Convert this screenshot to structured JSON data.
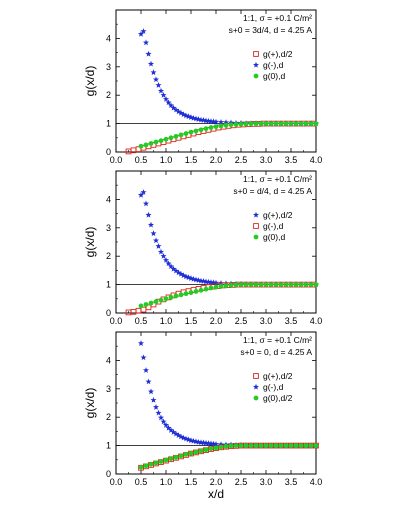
{
  "colors": {
    "plus": "#e0241b",
    "minus": "#1f2fd6",
    "zero": "#22cc22",
    "axis": "#000000",
    "refline": "#000000"
  },
  "xlabel": "x/d",
  "chart_data": [
    {
      "type": "scatter",
      "ylabel": "g(x/d)",
      "xlim": [
        0.0,
        4.0
      ],
      "ylim": [
        0,
        5
      ],
      "xticks": [
        "0.0",
        "0.5",
        "1.0",
        "1.5",
        "2.0",
        "2.5",
        "3.0",
        "3.5",
        "4.0"
      ],
      "yticks": [
        "0",
        "1",
        "2",
        "3",
        "4"
      ],
      "annotation": [
        "1:1, σ = +0.1 C/m²",
        "s+0 = 3d/4, d = 4.25 A"
      ],
      "legend_position": "right",
      "series": [
        {
          "name": "g(+),d/2",
          "marker": "open-square",
          "color_key": "plus",
          "x": [
            0.25,
            0.35,
            0.45,
            0.55,
            0.65,
            0.75,
            0.85,
            0.95,
            1.05,
            1.15,
            1.25,
            1.35,
            1.45,
            1.55,
            1.65,
            1.75,
            1.85,
            1.95,
            2.05,
            2.15,
            2.25,
            2.35,
            2.45,
            2.55,
            2.65,
            2.75,
            2.85,
            2.95,
            3.05,
            3.15,
            3.25,
            3.35,
            3.45,
            3.55,
            3.65,
            3.75,
            3.85,
            3.95
          ],
          "y": [
            0.02,
            0.06,
            0.1,
            0.15,
            0.2,
            0.25,
            0.3,
            0.35,
            0.4,
            0.45,
            0.5,
            0.55,
            0.6,
            0.65,
            0.7,
            0.74,
            0.78,
            0.82,
            0.86,
            0.89,
            0.92,
            0.94,
            0.96,
            0.97,
            0.98,
            0.99,
            0.99,
            1.0,
            1.0,
            1.0,
            1.0,
            1.0,
            1.0,
            1.0,
            1.0,
            1.0,
            1.0,
            1.0
          ]
        },
        {
          "name": "g(-),d",
          "marker": "star",
          "color_key": "minus",
          "x": [
            0.5,
            0.55,
            0.6,
            0.65,
            0.7,
            0.75,
            0.8,
            0.85,
            0.9,
            0.95,
            1.0,
            1.05,
            1.1,
            1.15,
            1.2,
            1.25,
            1.3,
            1.35,
            1.4,
            1.45,
            1.5,
            1.55,
            1.6,
            1.65,
            1.7,
            1.75,
            1.8,
            1.85,
            1.9,
            1.95,
            2.0,
            2.1,
            2.2,
            2.3,
            2.4,
            2.5,
            2.6,
            2.7,
            2.8,
            2.9,
            3.0,
            3.1,
            3.2,
            3.3,
            3.4,
            3.5,
            3.6,
            3.7,
            3.8,
            3.9,
            4.0
          ],
          "y": [
            4.15,
            4.25,
            3.85,
            3.45,
            3.1,
            2.8,
            2.55,
            2.35,
            2.15,
            2.0,
            1.86,
            1.74,
            1.64,
            1.55,
            1.48,
            1.42,
            1.37,
            1.32,
            1.28,
            1.25,
            1.22,
            1.19,
            1.17,
            1.15,
            1.13,
            1.12,
            1.1,
            1.09,
            1.08,
            1.07,
            1.06,
            1.05,
            1.04,
            1.03,
            1.02,
            1.02,
            1.01,
            1.01,
            1.01,
            1.0,
            1.0,
            1.0,
            1.0,
            1.0,
            1.0,
            1.0,
            1.0,
            1.0,
            1.0,
            1.0,
            1.0
          ]
        },
        {
          "name": "g(0),d",
          "marker": "filled-circle",
          "color_key": "zero",
          "x": [
            0.5,
            0.6,
            0.7,
            0.8,
            0.9,
            1.0,
            1.1,
            1.2,
            1.3,
            1.4,
            1.5,
            1.6,
            1.7,
            1.8,
            1.9,
            2.0,
            2.1,
            2.2,
            2.3,
            2.4,
            2.5,
            2.6,
            2.7,
            2.8,
            2.9,
            3.0,
            3.1,
            3.2,
            3.3,
            3.4,
            3.5,
            3.6,
            3.7,
            3.8,
            3.9,
            4.0
          ],
          "y": [
            0.2,
            0.25,
            0.3,
            0.35,
            0.4,
            0.45,
            0.5,
            0.55,
            0.6,
            0.65,
            0.7,
            0.74,
            0.78,
            0.82,
            0.86,
            0.89,
            0.92,
            0.94,
            0.96,
            0.97,
            0.98,
            0.99,
            1.0,
            1.0,
            1.0,
            1.0,
            1.0,
            1.0,
            1.0,
            1.0,
            1.0,
            1.0,
            1.0,
            1.0,
            1.0,
            1.0
          ]
        }
      ]
    },
    {
      "type": "scatter",
      "ylabel": "g(x/d)",
      "xlim": [
        0.0,
        4.0
      ],
      "ylim": [
        0,
        5
      ],
      "xticks": [
        "0.0",
        "0.5",
        "1.0",
        "1.5",
        "2.0",
        "2.5",
        "3.0",
        "3.5",
        "4.0"
      ],
      "yticks": [
        "0",
        "1",
        "2",
        "3",
        "4"
      ],
      "annotation": [
        "1:1, σ = +0.1 C/m²",
        "s+0 = d/4, d = 4.25 A"
      ],
      "legend_position": "right",
      "series": [
        {
          "name": "g(+),d/2",
          "marker": "star",
          "color_key": "minus",
          "x": [
            0.5,
            0.55,
            0.6,
            0.65,
            0.7,
            0.75,
            0.8,
            0.85,
            0.9,
            0.95,
            1.0,
            1.05,
            1.1,
            1.15,
            1.2,
            1.25,
            1.3,
            1.35,
            1.4,
            1.45,
            1.5,
            1.55,
            1.6,
            1.65,
            1.7,
            1.75,
            1.8,
            1.85,
            1.9,
            1.95,
            2.0,
            2.1,
            2.2,
            2.3,
            2.4,
            2.5,
            2.6,
            2.7,
            2.8,
            2.9,
            3.0,
            3.1,
            3.2,
            3.3,
            3.4,
            3.5,
            3.6,
            3.7,
            3.8,
            3.9,
            4.0
          ],
          "y": [
            4.15,
            4.25,
            3.85,
            3.45,
            3.1,
            2.8,
            2.55,
            2.35,
            2.15,
            2.0,
            1.86,
            1.74,
            1.64,
            1.55,
            1.48,
            1.42,
            1.37,
            1.32,
            1.28,
            1.25,
            1.22,
            1.19,
            1.17,
            1.15,
            1.13,
            1.12,
            1.1,
            1.09,
            1.08,
            1.07,
            1.06,
            1.05,
            1.04,
            1.03,
            1.02,
            1.02,
            1.01,
            1.01,
            1.01,
            1.0,
            1.0,
            1.0,
            1.0,
            1.0,
            1.0,
            1.0,
            1.0,
            1.0,
            1.0,
            1.0,
            1.0
          ]
        },
        {
          "name": "g(-),d",
          "marker": "open-square",
          "color_key": "plus",
          "x": [
            0.25,
            0.35,
            0.45,
            0.55,
            0.65,
            0.75,
            0.85,
            0.95,
            1.05,
            1.15,
            1.25,
            1.35,
            1.45,
            1.55,
            1.65,
            1.75,
            1.85,
            1.95,
            2.05,
            2.15,
            2.25,
            2.35,
            2.45,
            2.55,
            2.65,
            2.75,
            2.85,
            2.95,
            3.05,
            3.15,
            3.25,
            3.35,
            3.45,
            3.55,
            3.65,
            3.75,
            3.85,
            3.95
          ],
          "y": [
            0.02,
            0.04,
            0.08,
            0.12,
            0.2,
            0.3,
            0.4,
            0.48,
            0.55,
            0.62,
            0.68,
            0.73,
            0.77,
            0.81,
            0.85,
            0.88,
            0.91,
            0.93,
            0.95,
            0.97,
            0.98,
            0.99,
            1.0,
            1.0,
            1.0,
            1.0,
            1.0,
            1.0,
            1.0,
            1.0,
            1.0,
            1.0,
            1.0,
            1.0,
            1.0,
            1.0,
            1.0,
            1.0
          ]
        },
        {
          "name": "g(0),d",
          "marker": "filled-circle",
          "color_key": "zero",
          "x": [
            0.5,
            0.6,
            0.7,
            0.8,
            0.9,
            1.0,
            1.1,
            1.2,
            1.3,
            1.4,
            1.5,
            1.6,
            1.7,
            1.8,
            1.9,
            2.0,
            2.1,
            2.2,
            2.3,
            2.4,
            2.5,
            2.6,
            2.7,
            2.8,
            2.9,
            3.0,
            3.1,
            3.2,
            3.3,
            3.4,
            3.5,
            3.6,
            3.7,
            3.8,
            3.9,
            4.0
          ],
          "y": [
            0.25,
            0.3,
            0.35,
            0.4,
            0.45,
            0.5,
            0.55,
            0.6,
            0.64,
            0.68,
            0.72,
            0.76,
            0.8,
            0.84,
            0.88,
            0.91,
            0.94,
            0.96,
            0.98,
            0.99,
            1.0,
            1.0,
            1.0,
            1.0,
            1.0,
            1.0,
            1.0,
            1.0,
            1.0,
            1.0,
            1.0,
            1.0,
            1.0,
            1.0,
            1.0,
            1.0
          ]
        }
      ]
    },
    {
      "type": "scatter",
      "ylabel": "g(x/d)",
      "xlim": [
        0.0,
        4.0
      ],
      "ylim": [
        0,
        5
      ],
      "xticks": [
        "0.0",
        "0.5",
        "1.0",
        "1.5",
        "2.0",
        "2.5",
        "3.0",
        "3.5",
        "4.0"
      ],
      "yticks": [
        "0",
        "1",
        "2",
        "3",
        "4"
      ],
      "annotation": [
        "1:1, σ = +0.1 C/m²",
        "s+0 = 0, d = 4.25 A"
      ],
      "legend_position": "right",
      "series": [
        {
          "name": "g(+),d/2",
          "marker": "open-square",
          "color_key": "plus",
          "x": [
            0.5,
            0.6,
            0.7,
            0.8,
            0.9,
            1.0,
            1.1,
            1.2,
            1.3,
            1.4,
            1.5,
            1.6,
            1.7,
            1.8,
            1.9,
            2.0,
            2.1,
            2.2,
            2.3,
            2.4,
            2.5,
            2.6,
            2.7,
            2.8,
            2.9,
            3.0,
            3.1,
            3.2,
            3.3,
            3.4,
            3.5,
            3.6,
            3.7,
            3.8,
            3.9,
            4.0
          ],
          "y": [
            0.22,
            0.27,
            0.32,
            0.37,
            0.42,
            0.47,
            0.52,
            0.57,
            0.62,
            0.67,
            0.72,
            0.76,
            0.8,
            0.84,
            0.88,
            0.91,
            0.94,
            0.96,
            0.98,
            0.99,
            1.0,
            1.0,
            1.0,
            1.0,
            1.0,
            1.0,
            1.0,
            1.0,
            1.0,
            1.0,
            1.0,
            1.0,
            1.0,
            1.0,
            1.0,
            1.0
          ]
        },
        {
          "name": "g(-),d",
          "marker": "star",
          "color_key": "minus",
          "x": [
            0.5,
            0.55,
            0.6,
            0.65,
            0.7,
            0.75,
            0.8,
            0.85,
            0.9,
            0.95,
            1.0,
            1.05,
            1.1,
            1.15,
            1.2,
            1.25,
            1.3,
            1.35,
            1.4,
            1.45,
            1.5,
            1.55,
            1.6,
            1.65,
            1.7,
            1.75,
            1.8,
            1.85,
            1.9,
            1.95,
            2.0,
            2.1,
            2.2,
            2.3,
            2.4,
            2.5,
            2.6,
            2.7,
            2.8,
            2.9,
            3.0,
            3.1,
            3.2,
            3.3,
            3.4,
            3.5,
            3.6,
            3.7,
            3.8,
            3.9,
            4.0
          ],
          "y": [
            4.6,
            4.1,
            3.65,
            3.25,
            2.9,
            2.6,
            2.35,
            2.15,
            1.98,
            1.84,
            1.72,
            1.62,
            1.54,
            1.47,
            1.41,
            1.36,
            1.31,
            1.27,
            1.24,
            1.21,
            1.18,
            1.16,
            1.14,
            1.12,
            1.11,
            1.1,
            1.09,
            1.08,
            1.07,
            1.06,
            1.05,
            1.04,
            1.03,
            1.03,
            1.02,
            1.02,
            1.01,
            1.01,
            1.01,
            1.0,
            1.0,
            1.0,
            1.0,
            1.0,
            1.0,
            1.0,
            1.0,
            1.0,
            1.0,
            1.0,
            1.0
          ]
        },
        {
          "name": "g(0),d/2",
          "marker": "filled-circle",
          "color_key": "zero",
          "x": [
            0.5,
            0.6,
            0.7,
            0.8,
            0.9,
            1.0,
            1.1,
            1.2,
            1.3,
            1.4,
            1.5,
            1.6,
            1.7,
            1.8,
            1.9,
            2.0,
            2.1,
            2.2,
            2.3,
            2.4,
            2.5,
            2.6,
            2.7,
            2.8,
            2.9,
            3.0,
            3.1,
            3.2,
            3.3,
            3.4,
            3.5,
            3.6,
            3.7,
            3.8,
            3.9,
            4.0
          ],
          "y": [
            0.24,
            0.29,
            0.34,
            0.39,
            0.44,
            0.49,
            0.54,
            0.59,
            0.64,
            0.69,
            0.73,
            0.77,
            0.81,
            0.85,
            0.89,
            0.92,
            0.95,
            0.97,
            0.99,
            1.0,
            1.0,
            1.0,
            1.0,
            1.0,
            1.0,
            1.0,
            1.0,
            1.0,
            1.0,
            1.0,
            1.0,
            1.0,
            1.0,
            1.0,
            1.0,
            1.0
          ]
        }
      ]
    }
  ]
}
